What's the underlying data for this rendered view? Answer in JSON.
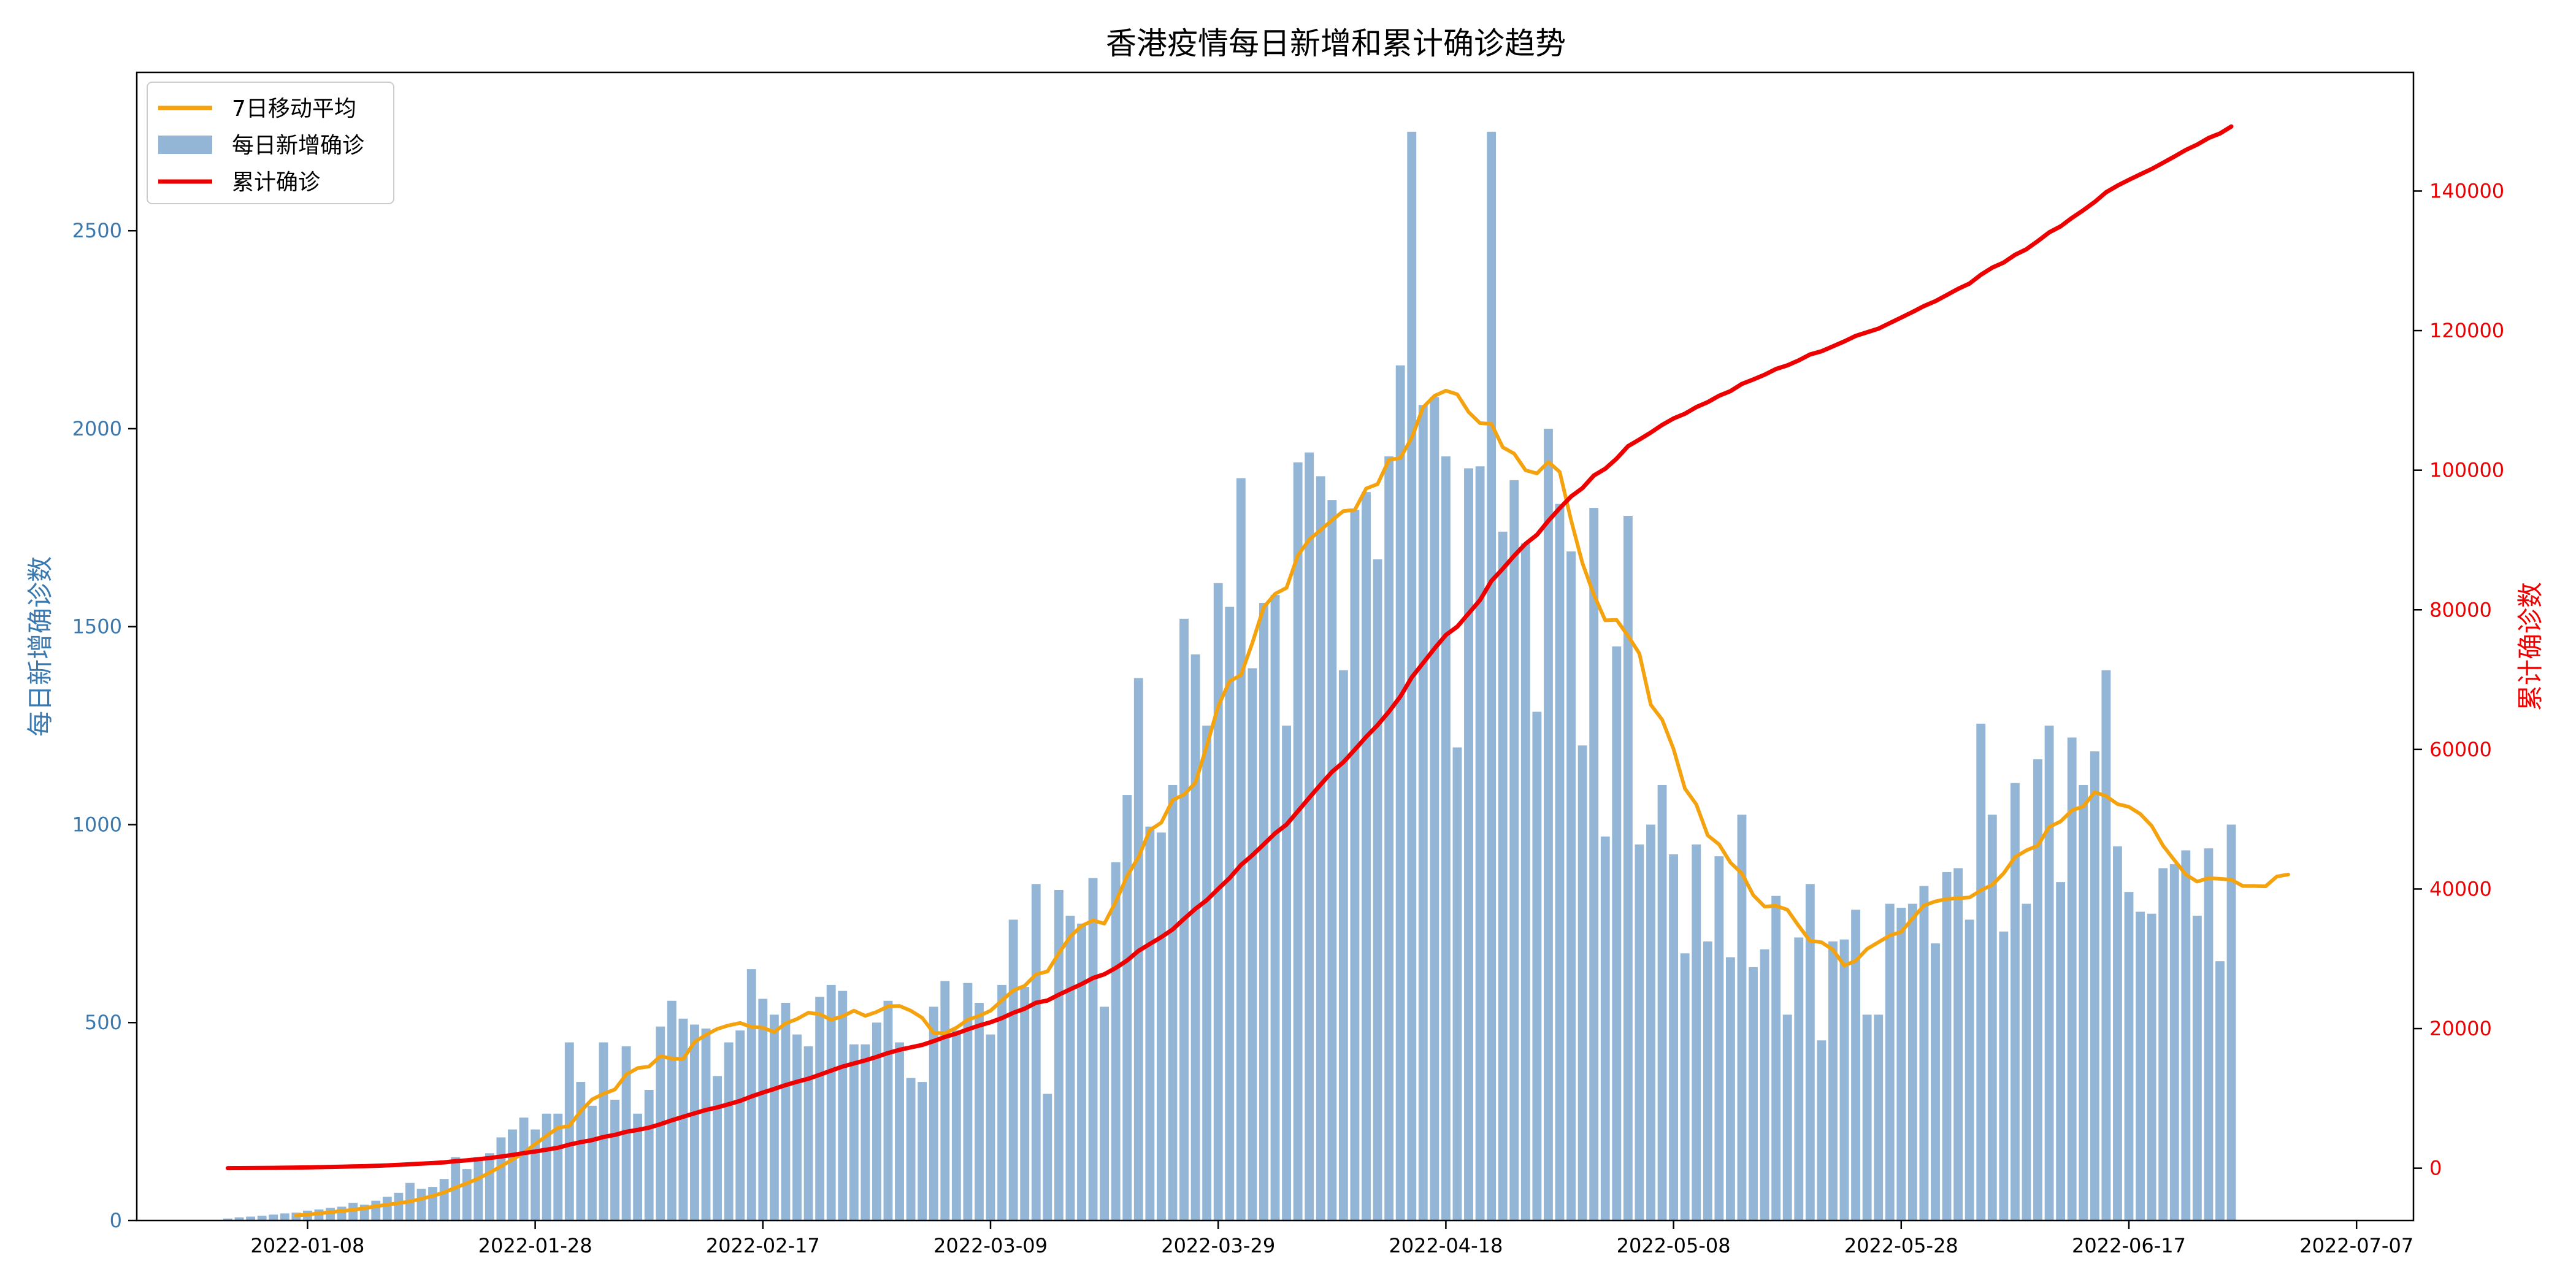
{
  "chart_data": {
    "type": "bar+line",
    "title": "香港疫情每日新增和累计确诊趋势",
    "xlabel": "",
    "ylabel_left": "每日新增确诊数",
    "ylabel_right": "累计确诊数",
    "x_start": "2022-01-01",
    "xlim": [
      "2021-12-24",
      "2022-07-12"
    ],
    "x_ticks": [
      "2022-01-08",
      "2022-01-28",
      "2022-02-17",
      "2022-03-09",
      "2022-03-29",
      "2022-04-18",
      "2022-05-08",
      "2022-05-28",
      "2022-06-17",
      "2022-07-07"
    ],
    "ylim_left": [
      0,
      2900
    ],
    "y_ticks_left": [
      0,
      500,
      1000,
      1500,
      2000,
      2500
    ],
    "ylim_right": [
      -7500,
      157000
    ],
    "y_ticks_right": [
      0,
      20000,
      40000,
      60000,
      80000,
      100000,
      120000,
      140000
    ],
    "legend_position": "top-left",
    "grid": false,
    "series": [
      {
        "name": "每日新增确诊",
        "type": "bar",
        "color": "#94b6d6",
        "values": [
          5,
          8,
          10,
          12,
          15,
          18,
          20,
          25,
          28,
          32,
          35,
          45,
          40,
          50,
          60,
          70,
          95,
          80,
          85,
          105,
          160,
          130,
          160,
          170,
          210,
          230,
          260,
          230,
          270,
          270,
          450,
          350,
          290,
          450,
          305,
          440,
          270,
          330,
          490,
          555,
          510,
          495,
          485,
          365,
          450,
          480,
          635,
          560,
          520,
          550,
          470,
          440,
          565,
          595,
          580,
          445,
          445,
          500,
          555,
          450,
          360,
          350,
          540,
          605,
          480,
          600,
          550,
          470,
          595,
          760,
          590,
          850,
          320,
          835,
          770,
          750,
          865,
          540,
          905,
          1075,
          1370,
          995,
          980,
          1100,
          1520,
          1430,
          1250,
          1610,
          1550,
          1875,
          1395,
          1560,
          1580,
          1250,
          1915,
          1940,
          1880,
          1820,
          1390,
          1795,
          1840,
          1670,
          1930,
          2160,
          2750,
          2060,
          2080,
          1930,
          1195,
          1900,
          1905,
          2750,
          1740,
          1870,
          1710,
          1285,
          2000,
          1810,
          1690,
          1200,
          1800,
          970,
          1450,
          1780,
          950,
          1000,
          1100,
          925,
          675,
          950,
          705,
          920,
          665,
          1025,
          640,
          685,
          820,
          520,
          715,
          850,
          455,
          705,
          710,
          785,
          520,
          520,
          800,
          790,
          800,
          845,
          700,
          880,
          890,
          760,
          1255,
          1025,
          730,
          1105,
          800,
          1165,
          1250,
          855,
          1220,
          1100,
          1185,
          1390,
          945,
          830,
          780,
          775,
          890,
          900,
          935,
          770,
          940,
          655,
          1000
        ]
      },
      {
        "name": "7日移动平均",
        "type": "line",
        "color": "#f5a20f",
        "start_index": 6,
        "values": [
          13,
          15,
          18,
          21,
          24,
          27,
          31,
          36,
          40,
          44,
          48,
          55,
          62,
          71,
          83,
          94,
          106,
          121,
          137,
          154,
          171,
          193,
          214,
          234,
          239,
          276,
          306,
          320,
          331,
          369,
          385,
          389,
          415,
          409,
          408,
          451,
          469,
          484,
          493,
          499,
          489,
          487,
          476,
          498,
          509,
          525,
          521,
          507,
          516,
          530,
          517,
          527,
          541,
          542,
          530,
          512,
          474,
          473,
          487,
          507,
          517,
          530,
          556,
          581,
          593,
          622,
          629,
          675,
          717,
          744,
          758,
          750,
          805,
          870,
          918,
          986,
          1005,
          1062,
          1076,
          1106,
          1199,
          1299,
          1362,
          1378,
          1459,
          1549,
          1583,
          1598,
          1680,
          1720,
          1744,
          1769,
          1792,
          1795,
          1849,
          1860,
          1921,
          1926,
          1977,
          2054,
          2083,
          2096,
          2087,
          2042,
          2014,
          2012,
          1953,
          1937,
          1895,
          1887,
          1916,
          1891,
          1769,
          1660,
          1581,
          1516,
          1517,
          1477,
          1432,
          1303,
          1265,
          1191,
          1091,
          1051,
          973,
          950,
          904,
          877,
          822,
          793,
          795,
          785,
          744,
          706,
          703,
          684,
          644,
          656,
          686,
          703,
          720,
          729,
          763,
          796,
          806,
          812,
          814,
          816,
          834,
          848,
          877,
          918,
          935,
          947,
          994,
          1008,
          1036,
          1046,
          1082,
          1072,
          1052,
          1045,
          1027,
          997,
          947,
          910,
          874,
          856,
          865,
          863,
          861,
          845,
          845,
          844,
          869,
          874
        ]
      },
      {
        "name": "累计确诊",
        "type": "line",
        "color": "#ee0000",
        "axis": "right",
        "values": [
          5,
          13,
          23,
          35,
          50,
          68,
          88,
          113,
          141,
          173,
          208,
          253,
          293,
          343,
          403,
          473,
          568,
          648,
          733,
          838,
          998,
          1128,
          1288,
          1458,
          1668,
          1898,
          2158,
          2388,
          2658,
          2928,
          3378,
          3728,
          4018,
          4468,
          4773,
          5213,
          5483,
          5813,
          6303,
          6858,
          7368,
          7863,
          8348,
          8713,
          9163,
          9643,
          10278,
          10838,
          11358,
          11908,
          12378,
          12818,
          13383,
          13978,
          14558,
          15003,
          15448,
          15948,
          16503,
          16953,
          17313,
          17663,
          18203,
          18808,
          19288,
          19888,
          20438,
          20908,
          21503,
          22263,
          22853,
          23703,
          24023,
          24858,
          25628,
          26378,
          27243,
          27783,
          28688,
          29763,
          31133,
          32128,
          33108,
          34208,
          35728,
          37158,
          38408,
          40018,
          41568,
          43443,
          44838,
          46398,
          47978,
          49228,
          51143,
          53083,
          54963,
          56783,
          58173,
          59968,
          61808,
          63478,
          65408,
          67568,
          70318,
          72378,
          74458,
          76388,
          77583,
          79483,
          81388,
          84138,
          85878,
          87748,
          89458,
          90743,
          92743,
          94553,
          96243,
          97443,
          99243,
          100213,
          101663,
          103443,
          104393,
          105393,
          106493,
          107418,
          108093,
          109043,
          109748,
          110668,
          111333,
          112358,
          112998,
          113683,
          114503,
          115023,
          115738,
          116588,
          117043,
          117748,
          118458,
          119243,
          119763,
          120283,
          121083,
          121873,
          122673,
          123518,
          124218,
          125098,
          125988,
          126748,
          128003,
          129028,
          129758,
          130863,
          131663,
          132828,
          134078,
          134933,
          136153,
          137253,
          138438,
          139828,
          140773,
          141603,
          142383,
          143158,
          144048,
          144948,
          145883,
          146653,
          147593,
          148248,
          149248
        ]
      }
    ]
  }
}
